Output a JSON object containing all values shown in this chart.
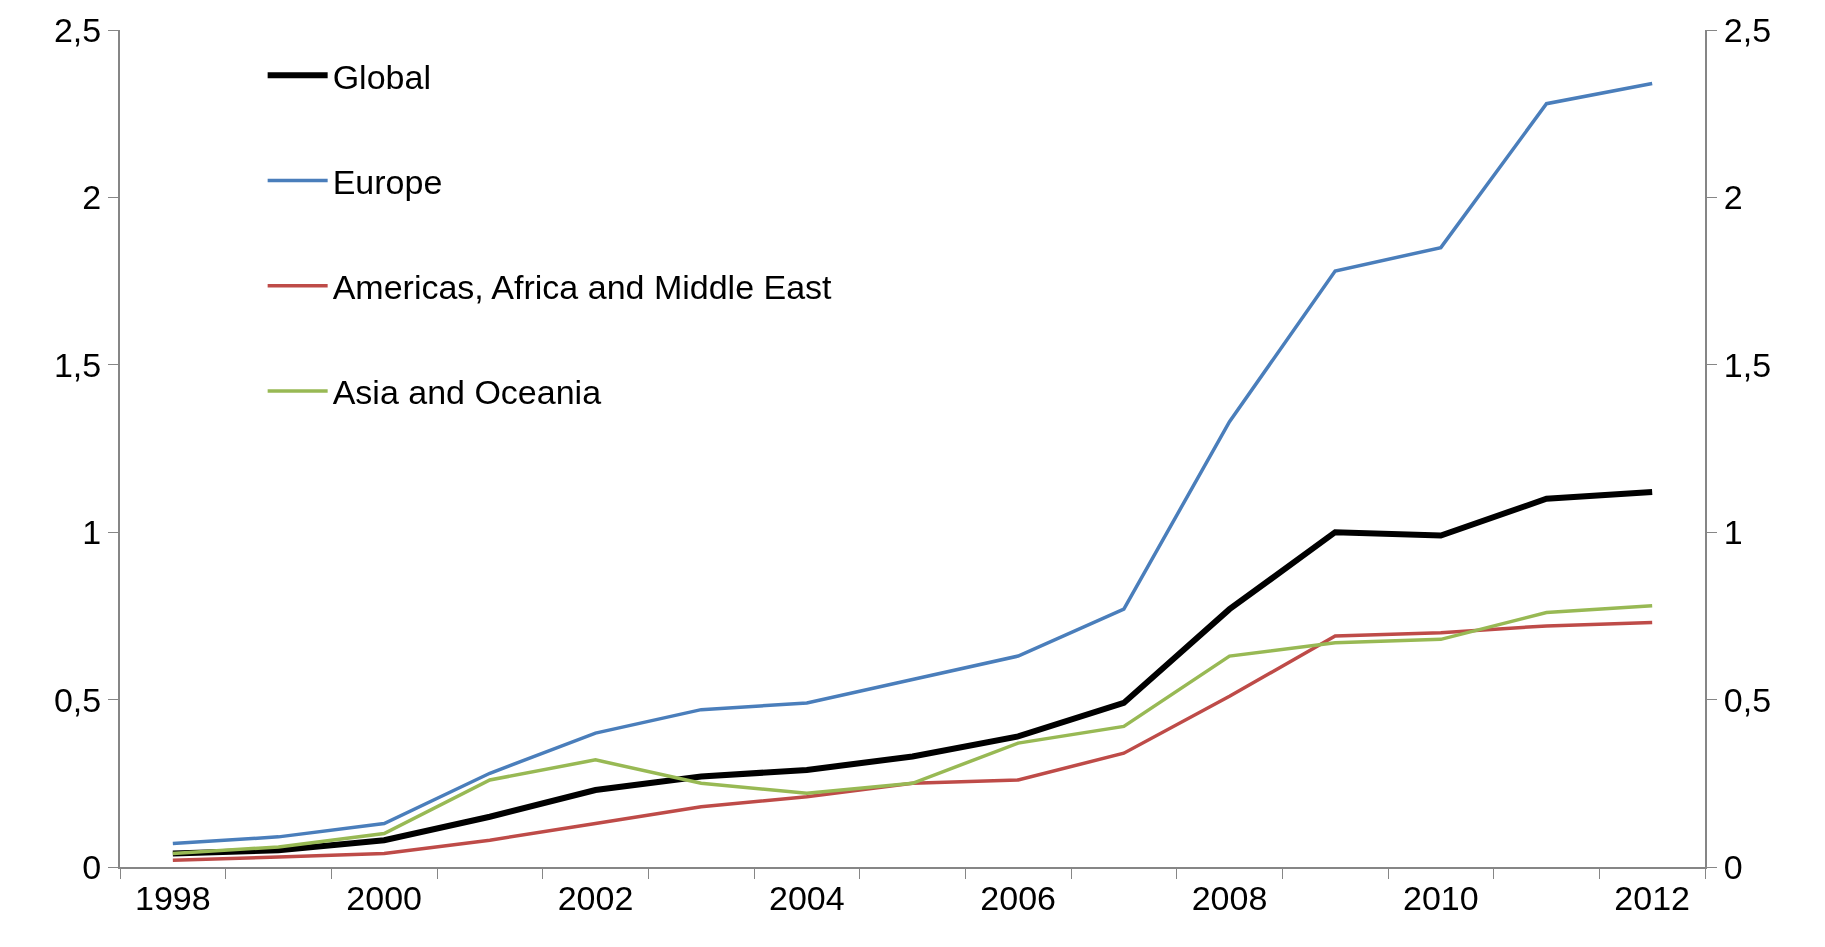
{
  "chart_data": {
    "type": "line",
    "categories": [
      "1998",
      null,
      "2000",
      null,
      "2002",
      null,
      "2004",
      null,
      "2006",
      null,
      "2008",
      null,
      "2010",
      null,
      "2012"
    ],
    "series": [
      {
        "name": "Global",
        "color": "#000000",
        "values": [
          0.04,
          0.05,
          0.08,
          0.15,
          0.23,
          0.27,
          0.29,
          0.33,
          0.39,
          0.49,
          0.77,
          1.0,
          0.99,
          1.1,
          1.12
        ]
      },
      {
        "name": "Europe",
        "color": "#4a7ebb",
        "values": [
          0.07,
          0.09,
          0.13,
          0.28,
          0.4,
          0.47,
          0.49,
          0.56,
          0.63,
          0.77,
          1.33,
          1.78,
          1.85,
          2.28,
          2.34
        ]
      },
      {
        "name": "Americas, Africa and Middle East",
        "color": "#be4b48",
        "values": [
          0.02,
          0.03,
          0.04,
          0.08,
          0.13,
          0.18,
          0.21,
          0.25,
          0.26,
          0.34,
          0.51,
          0.69,
          0.7,
          0.72,
          0.73
        ]
      },
      {
        "name": "Asia and Oceania",
        "color": "#98b954",
        "values": [
          0.04,
          0.06,
          0.1,
          0.26,
          0.32,
          0.25,
          0.22,
          0.25,
          0.37,
          0.42,
          0.63,
          0.67,
          0.68,
          0.76,
          0.78
        ]
      }
    ],
    "ylim": [
      0,
      2.5
    ],
    "yticks": [
      {
        "value": 0,
        "label": "0"
      },
      {
        "value": 0.5,
        "label": "0,5"
      },
      {
        "value": 1,
        "label": "1"
      },
      {
        "value": 1.5,
        "label": "1,5"
      },
      {
        "value": 2,
        "label": "2"
      },
      {
        "value": 2.5,
        "label": "2,5"
      }
    ],
    "y2lim": [
      0,
      2.5
    ],
    "y2ticks": [
      {
        "value": 0,
        "label": "0"
      },
      {
        "value": 0.5,
        "label": "0,5"
      },
      {
        "value": 1,
        "label": "1"
      },
      {
        "value": 1.5,
        "label": "1,5"
      },
      {
        "value": 2,
        "label": "2"
      },
      {
        "value": 2.5,
        "label": "2,5"
      }
    ],
    "legend": "top left",
    "grid": false,
    "marker": "none",
    "line_style": "solid"
  }
}
